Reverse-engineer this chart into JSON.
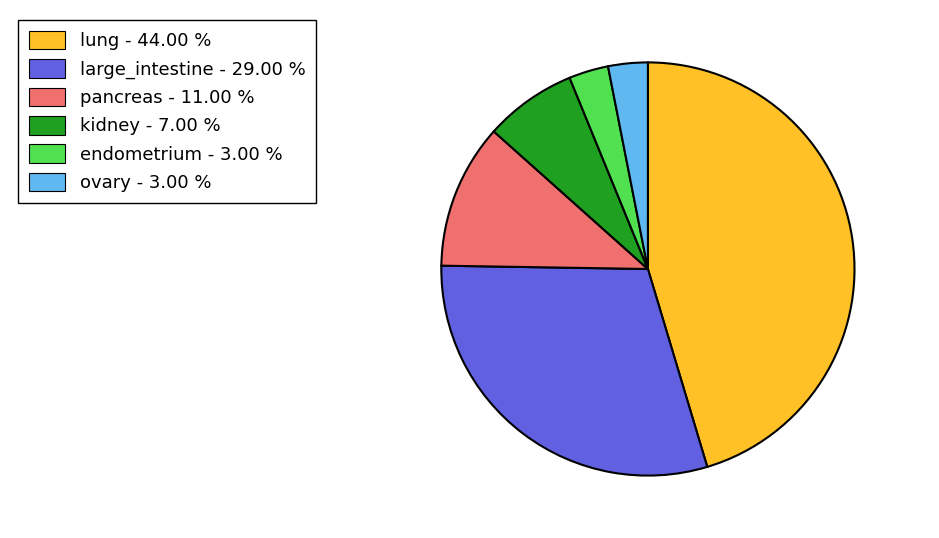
{
  "labels": [
    "lung",
    "large_intestine",
    "pancreas",
    "kidney",
    "endometrium",
    "ovary"
  ],
  "values": [
    44.0,
    29.0,
    11.0,
    7.0,
    3.0,
    3.0
  ],
  "colors": [
    "#FFC125",
    "#6060E0",
    "#F07070",
    "#20A020",
    "#50E050",
    "#60B8F0"
  ],
  "legend_labels": [
    "lung - 44.00 %",
    "large_intestine - 29.00 %",
    "pancreas - 11.00 %",
    "kidney - 7.00 %",
    "endometrium - 3.00 %",
    "ovary - 3.00 %"
  ],
  "startangle": 90,
  "figsize": [
    9.39,
    5.38
  ],
  "dpi": 100
}
